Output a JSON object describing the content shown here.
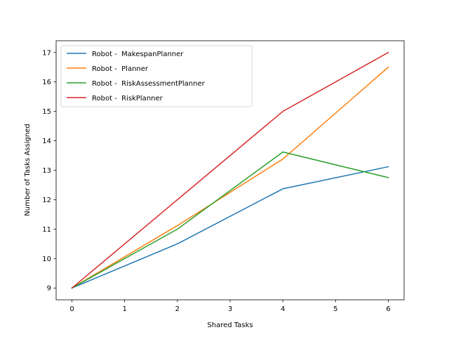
{
  "chart_data": {
    "type": "line",
    "title": "",
    "xlabel": "Shared Tasks",
    "ylabel": "Number of Tasks Assigned",
    "xlim": [
      -0.3,
      6.3
    ],
    "ylim": [
      8.6,
      17.4
    ],
    "xticks": [
      0,
      1,
      2,
      3,
      4,
      5,
      6
    ],
    "yticks": [
      9,
      10,
      11,
      12,
      13,
      14,
      15,
      16,
      17
    ],
    "grid": false,
    "legend_position": "upper-left",
    "x": [
      0,
      2,
      4,
      6
    ],
    "series": [
      {
        "name": "Robot -  MakespanPlanner",
        "color": "#1f77b4",
        "values": [
          9.0,
          10.5,
          12.37,
          13.12
        ]
      },
      {
        "name": "Robot -  Planner",
        "color": "#ff7f0e",
        "values": [
          9.0,
          11.12,
          13.38,
          16.5
        ]
      },
      {
        "name": "Robot -  RiskAssessmentPlanner",
        "color": "#2ca02c",
        "values": [
          9.0,
          11.0,
          13.62,
          12.75
        ]
      },
      {
        "name": "Robot -  RiskPlanner",
        "color": "#d62728",
        "values": [
          9.0,
          12.0,
          15.0,
          17.0
        ]
      }
    ]
  }
}
